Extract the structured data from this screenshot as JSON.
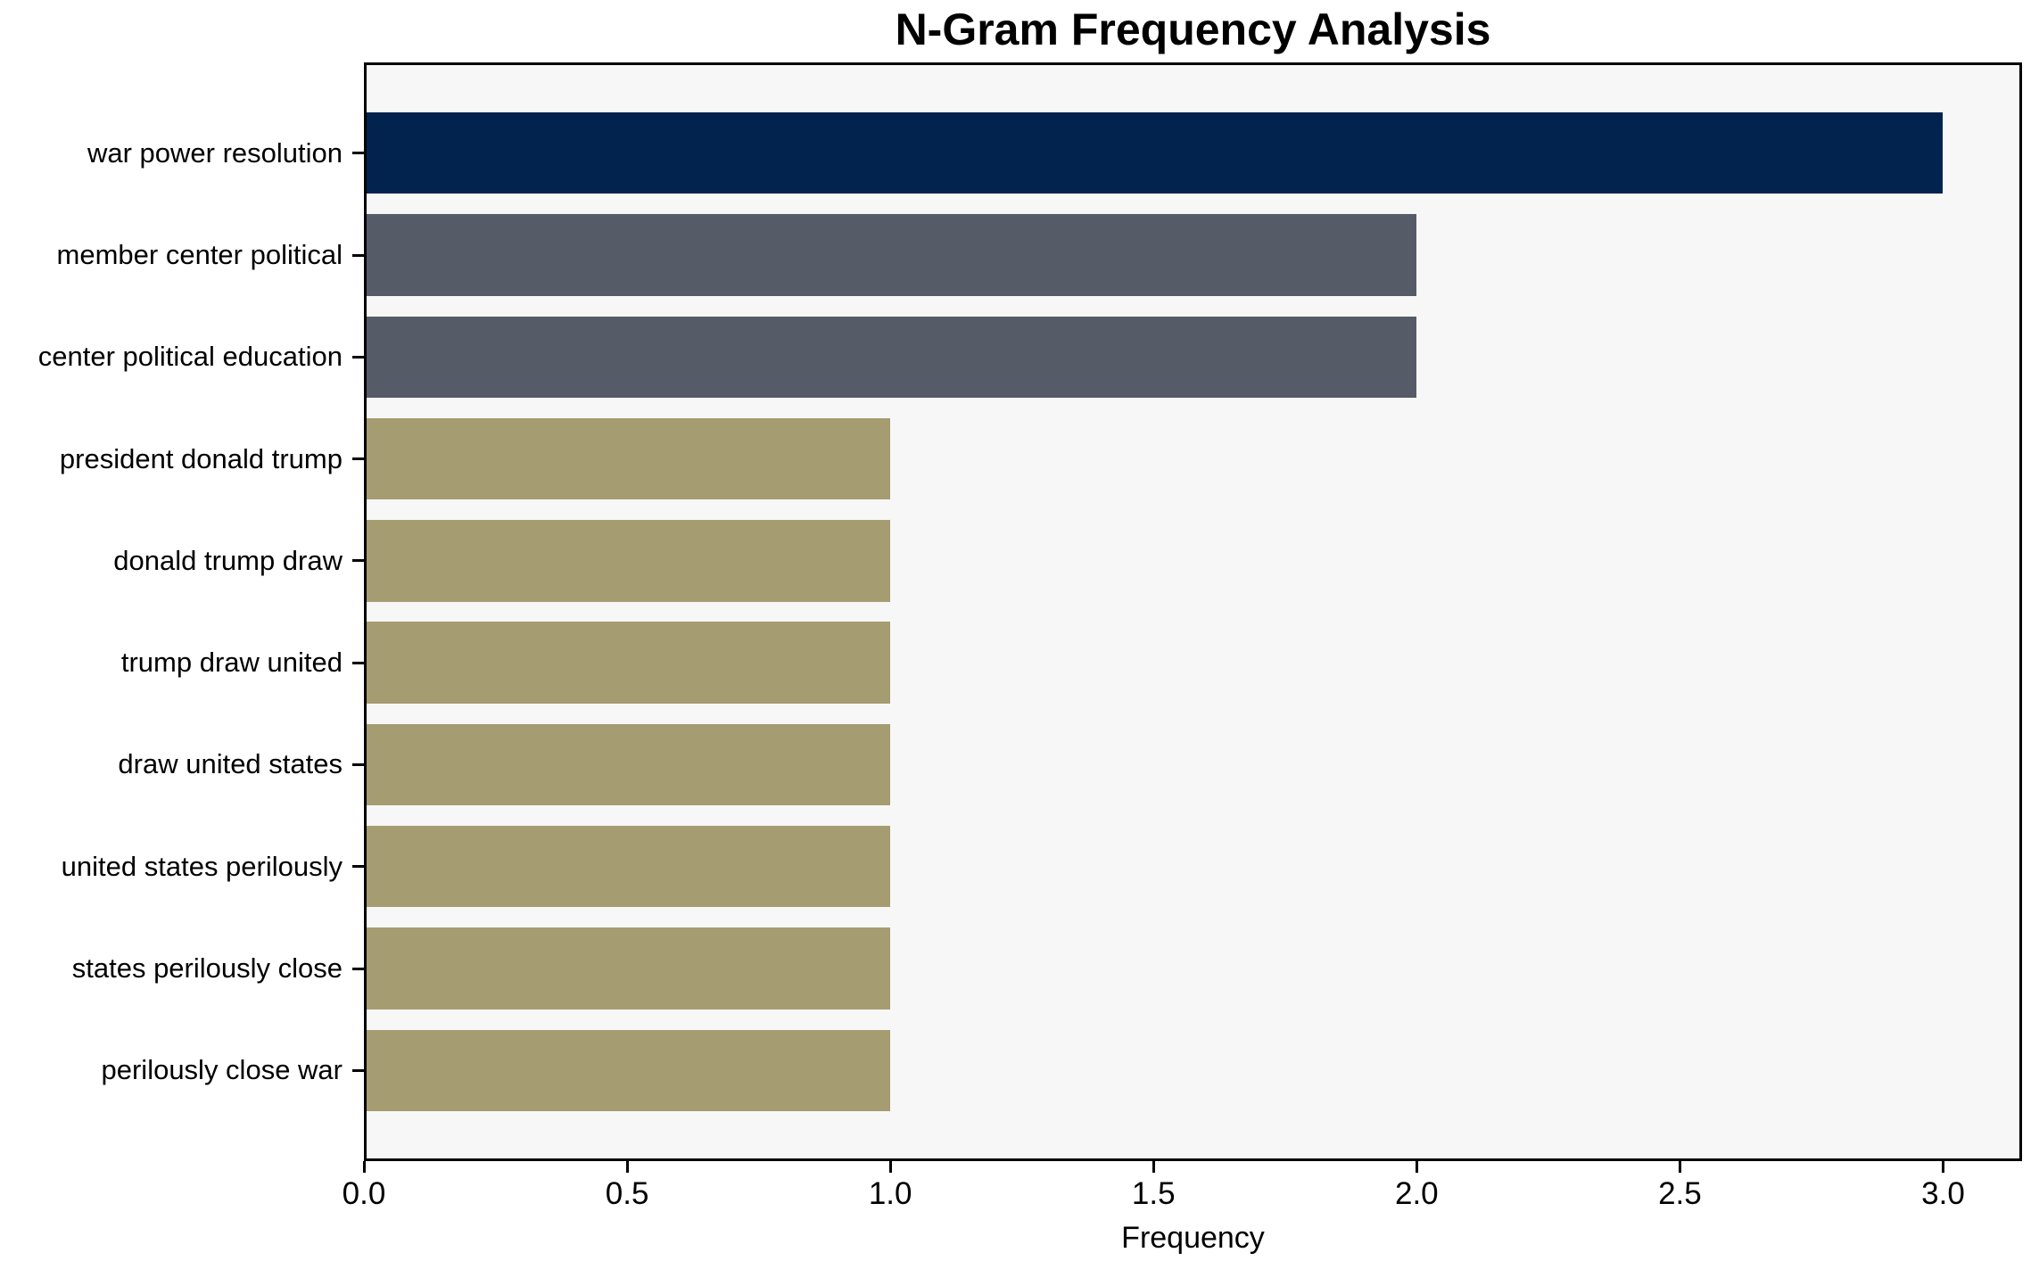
{
  "chart_data": {
    "type": "bar",
    "orientation": "horizontal",
    "title": "N-Gram Frequency Analysis",
    "xlabel": "Frequency",
    "ylabel": "",
    "categories": [
      "war power resolution",
      "member center political",
      "center political education",
      "president donald trump",
      "donald trump draw",
      "trump draw united",
      "draw united states",
      "united states perilously",
      "states perilously close",
      "perilously close war"
    ],
    "values": [
      3,
      2,
      2,
      1,
      1,
      1,
      1,
      1,
      1,
      1
    ],
    "bar_colors": [
      "#02234D",
      "#565B68",
      "#565B68",
      "#A59C72",
      "#A59C72",
      "#A59C72",
      "#A59C72",
      "#A59C72",
      "#A59C72",
      "#A59C72"
    ],
    "xlim": [
      0,
      3.15
    ],
    "xticks": [
      0,
      0.5,
      1,
      1.5,
      2,
      2.5,
      3
    ],
    "xticklabels": [
      "0.0",
      "0.5",
      "1.0",
      "1.5",
      "2.0",
      "2.5",
      "3.0"
    ],
    "grid": false,
    "legend": null,
    "plot_background": "#F7F7F7",
    "figure_background": "#FFFFFF",
    "tick_color": "#000000",
    "text_color": "#000000"
  }
}
